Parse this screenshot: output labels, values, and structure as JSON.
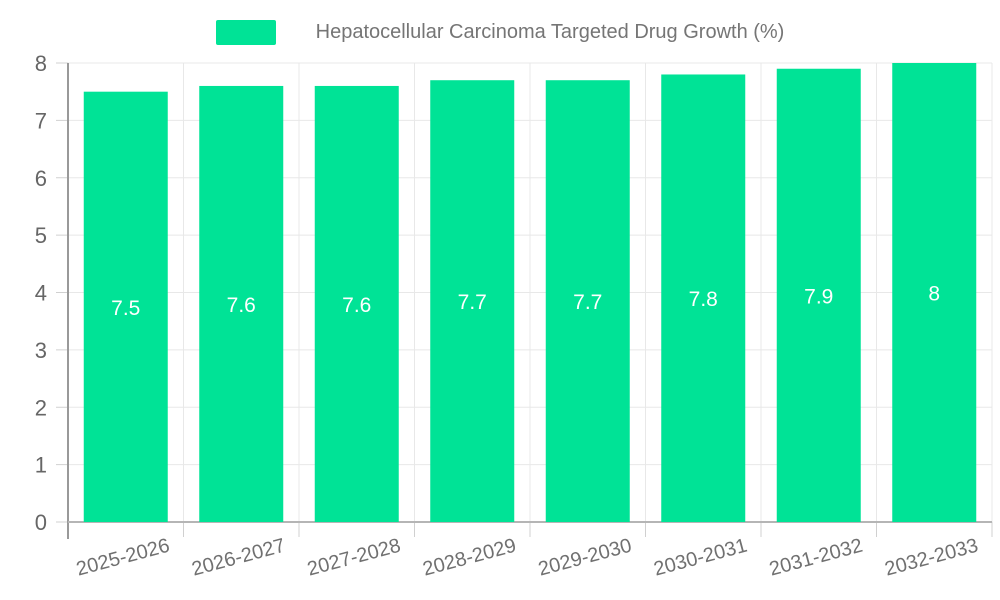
{
  "chart_data": {
    "type": "bar",
    "title": "Hepatocellular Carcinoma Targeted Drug Growth (%)",
    "legend_position": "top",
    "categories": [
      "2025-2026",
      "2026-2027",
      "2027-2028",
      "2028-2029",
      "2029-2030",
      "2030-2031",
      "2031-2032",
      "2032-2033"
    ],
    "series": [
      {
        "name": "Hepatocellular Carcinoma Targeted Drug Growth (%)",
        "values": [
          7.5,
          7.6,
          7.6,
          7.7,
          7.7,
          7.8,
          7.9,
          8
        ]
      }
    ],
    "display_values": [
      "7.5",
      "7.6",
      "7.6",
      "7.7",
      "7.7",
      "7.8",
      "7.9",
      "8"
    ],
    "y_ticks": [
      0,
      1,
      2,
      3,
      4,
      5,
      6,
      7,
      8
    ],
    "ylim": [
      0,
      8
    ],
    "xlabel": "",
    "ylabel": "",
    "grid": true,
    "x_label_rotation": -15,
    "colors": {
      "bar": "#00E396",
      "bar_label_text": "#ffffff",
      "axis_text": "#666666",
      "x_label_text": "#707070",
      "legend_text": "#757575",
      "gridline": "#e8e8e8",
      "baseline": "#b5b5b5",
      "axis_line": "#999999",
      "tick": "#d0d0d0",
      "background": "#ffffff"
    }
  }
}
